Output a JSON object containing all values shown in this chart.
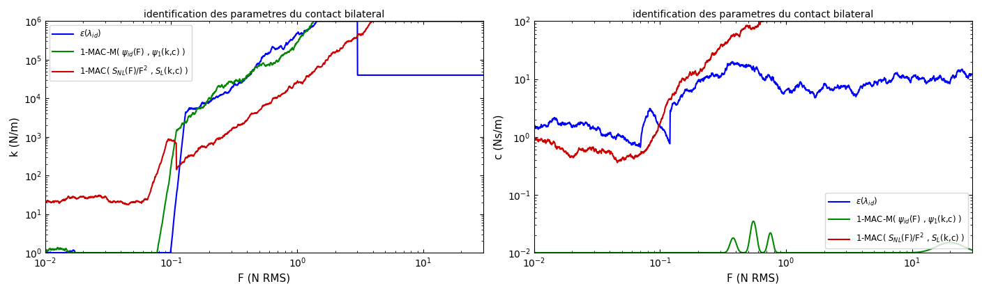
{
  "title": "identification des parametres du contact bilateral",
  "left_ylabel": "k (N/m)",
  "right_ylabel": "c (Ns/m)",
  "xlabel": "F (N RMS)",
  "left_ylim": [
    1.0,
    1000000.0
  ],
  "right_ylim": [
    0.01,
    100.0
  ],
  "xlim": [
    0.01,
    30
  ],
  "colors": {
    "blue": "#0000FF",
    "green": "#008800",
    "red": "#CC0000"
  },
  "linewidth": 1.5
}
